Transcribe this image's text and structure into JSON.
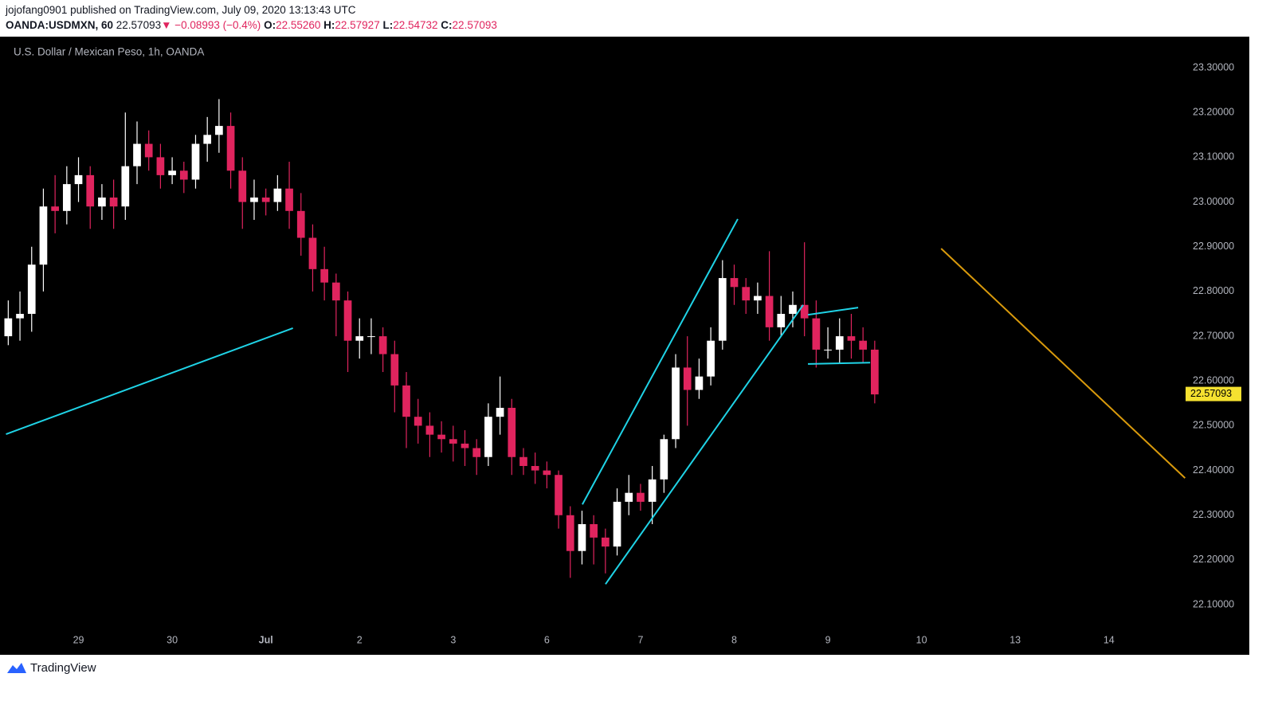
{
  "header": {
    "author_line": "jojofang0901 published on TradingView.com, July 09, 2020 13:13:43 UTC",
    "symbol": "OANDA:USDMXN, 60",
    "last": "22.57093",
    "change": "▼ −0.08993 (−0.4%)",
    "ohlc": [
      {
        "label": "O:",
        "value": "22.55260"
      },
      {
        "label": "H:",
        "value": "22.57927"
      },
      {
        "label": "L:",
        "value": "22.54732"
      },
      {
        "label": "C:",
        "value": "22.57093"
      }
    ]
  },
  "footer": {
    "brand": "TradingView"
  },
  "chart_data": {
    "type": "candlestick",
    "title": "U.S. Dollar / Mexican Peso, 1h, OANDA",
    "up_color": "#ffffff",
    "down_color": "#e0245e",
    "grid": false,
    "xlim": [
      -0.77,
      11.81
    ],
    "ylim": [
      22.045,
      23.366
    ],
    "xticks": [
      {
        "value": 0,
        "label": "29"
      },
      {
        "value": 1,
        "label": "30"
      },
      {
        "value": 2,
        "label": "Jul"
      },
      {
        "value": 3,
        "label": "2"
      },
      {
        "value": 4,
        "label": "3"
      },
      {
        "value": 5,
        "label": "6"
      },
      {
        "value": 6,
        "label": "7"
      },
      {
        "value": 7,
        "label": "8"
      },
      {
        "value": 8,
        "label": "9"
      },
      {
        "value": 9,
        "label": "10"
      },
      {
        "value": 10,
        "label": "13"
      },
      {
        "value": 11,
        "label": "14"
      }
    ],
    "yticks": [
      {
        "value": 22.1,
        "label": "22.10000"
      },
      {
        "value": 22.2,
        "label": "22.20000"
      },
      {
        "value": 22.3,
        "label": "22.30000"
      },
      {
        "value": 22.4,
        "label": "22.40000"
      },
      {
        "value": 22.5,
        "label": "22.50000"
      },
      {
        "value": 22.6,
        "label": "22.60000"
      },
      {
        "value": 22.7,
        "label": "22.70000"
      },
      {
        "value": 22.8,
        "label": "22.80000"
      },
      {
        "value": 22.9,
        "label": "22.90000"
      },
      {
        "value": 23.0,
        "label": "23.00000"
      },
      {
        "value": 23.1,
        "label": "23.10000"
      },
      {
        "value": 23.2,
        "label": "23.20000"
      },
      {
        "value": 23.3,
        "label": "23.30000"
      }
    ],
    "last_price": 22.57093,
    "last_price_color": "#f5e130",
    "x": [
      -0.75,
      -0.625,
      -0.5,
      -0.375,
      -0.25,
      -0.125,
      0,
      0.125,
      0.25,
      0.375,
      0.5,
      0.625,
      0.75,
      0.875,
      1,
      1.125,
      1.25,
      1.375,
      1.5,
      1.625,
      1.75,
      1.875,
      2,
      2.125,
      2.25,
      2.375,
      2.5,
      2.625,
      2.75,
      2.875,
      3,
      3.125,
      3.25,
      3.375,
      3.5,
      3.625,
      3.75,
      3.875,
      4,
      4.125,
      4.25,
      4.375,
      4.5,
      4.625,
      4.75,
      4.875,
      5,
      5.125,
      5.25,
      5.375,
      5.5,
      5.625,
      5.75,
      5.875,
      6,
      6.125,
      6.25,
      6.375,
      6.5,
      6.625,
      6.75,
      6.875,
      7,
      7.125,
      7.25,
      7.375,
      7.5,
      7.625,
      7.75,
      7.875,
      8,
      8.125,
      8.25,
      8.375,
      8.5
    ],
    "open": [
      22.7,
      22.74,
      22.75,
      22.86,
      22.99,
      22.98,
      23.04,
      23.06,
      22.99,
      23.01,
      22.99,
      23.08,
      23.13,
      23.1,
      23.06,
      23.07,
      23.05,
      23.13,
      23.15,
      23.17,
      23.07,
      23.0,
      23.01,
      23.0,
      23.03,
      22.98,
      22.92,
      22.85,
      22.82,
      22.78,
      22.69,
      22.7,
      22.7,
      22.66,
      22.59,
      22.52,
      22.5,
      22.48,
      22.47,
      22.46,
      22.45,
      22.43,
      22.52,
      22.54,
      22.43,
      22.41,
      22.4,
      22.39,
      22.3,
      22.22,
      22.28,
      22.25,
      22.23,
      22.33,
      22.35,
      22.33,
      22.38,
      22.47,
      22.63,
      22.58,
      22.61,
      22.69,
      22.83,
      22.81,
      22.78,
      22.79,
      22.72,
      22.75,
      22.77,
      22.74,
      22.67,
      22.67,
      22.7,
      22.69,
      22.67
    ],
    "high": [
      22.78,
      22.8,
      22.9,
      23.03,
      23.06,
      23.08,
      23.1,
      23.08,
      23.04,
      23.05,
      23.2,
      23.18,
      23.16,
      23.13,
      23.1,
      23.09,
      23.15,
      23.19,
      23.23,
      23.2,
      23.1,
      23.05,
      23.03,
      23.06,
      23.09,
      23.02,
      22.95,
      22.9,
      22.84,
      22.8,
      22.74,
      22.74,
      22.72,
      22.69,
      22.62,
      22.56,
      22.53,
      22.51,
      22.5,
      22.49,
      22.47,
      22.55,
      22.61,
      22.56,
      22.45,
      22.44,
      22.42,
      22.4,
      22.32,
      22.31,
      22.3,
      22.27,
      22.36,
      22.39,
      22.37,
      22.41,
      22.48,
      22.66,
      22.7,
      22.65,
      22.72,
      22.87,
      22.86,
      22.83,
      22.82,
      22.89,
      22.79,
      22.8,
      22.91,
      22.78,
      22.72,
      22.74,
      22.75,
      22.72,
      22.69
    ],
    "low": [
      22.68,
      22.69,
      22.71,
      22.8,
      22.93,
      22.95,
      23.0,
      22.94,
      22.96,
      22.94,
      22.96,
      23.04,
      23.07,
      23.03,
      23.04,
      23.02,
      23.03,
      23.09,
      23.11,
      23.03,
      22.94,
      22.96,
      22.97,
      22.98,
      22.94,
      22.88,
      22.8,
      22.78,
      22.7,
      22.62,
      22.65,
      22.66,
      22.62,
      22.53,
      22.45,
      22.46,
      22.43,
      22.44,
      22.42,
      22.41,
      22.39,
      22.41,
      22.48,
      22.39,
      22.39,
      22.37,
      22.36,
      22.27,
      22.16,
      22.19,
      22.19,
      22.17,
      22.21,
      22.3,
      22.31,
      22.28,
      22.35,
      22.45,
      22.5,
      22.56,
      22.59,
      22.67,
      22.77,
      22.75,
      22.75,
      22.69,
      22.7,
      22.72,
      22.7,
      22.63,
      22.65,
      22.64,
      22.65,
      22.64,
      22.55
    ],
    "close": [
      22.74,
      22.75,
      22.86,
      22.99,
      22.98,
      23.04,
      23.06,
      22.99,
      23.01,
      22.99,
      23.08,
      23.13,
      23.1,
      23.06,
      23.07,
      23.05,
      23.13,
      23.15,
      23.17,
      23.07,
      23.0,
      23.01,
      23.0,
      23.03,
      22.98,
      22.92,
      22.85,
      22.82,
      22.78,
      22.69,
      22.7,
      22.7,
      22.66,
      22.59,
      22.52,
      22.5,
      22.48,
      22.47,
      22.46,
      22.45,
      22.43,
      22.52,
      22.54,
      22.43,
      22.41,
      22.4,
      22.39,
      22.3,
      22.22,
      22.28,
      22.25,
      22.23,
      22.33,
      22.35,
      22.33,
      22.38,
      22.47,
      22.63,
      22.58,
      22.61,
      22.69,
      22.83,
      22.81,
      22.78,
      22.79,
      22.72,
      22.75,
      22.77,
      22.74,
      22.67,
      22.67,
      22.7,
      22.69,
      22.67,
      22.57
    ],
    "drawings": [
      {
        "color": "#1fd3e6",
        "points": [
          [
            -0.774,
            22.481
          ],
          [
            2.289,
            22.718
          ]
        ]
      },
      {
        "color": "#1fd3e6",
        "points": [
          [
            5.379,
            22.324
          ],
          [
            7.038,
            22.962
          ]
        ]
      },
      {
        "color": "#1fd3e6",
        "points": [
          [
            5.626,
            22.146
          ],
          [
            7.736,
            22.77
          ]
        ]
      },
      {
        "color": "#1fd3e6",
        "points": [
          [
            7.787,
            22.748
          ],
          [
            8.323,
            22.764
          ]
        ]
      },
      {
        "color": "#1fd3e6",
        "points": [
          [
            7.787,
            22.638
          ],
          [
            8.451,
            22.641
          ]
        ]
      },
      {
        "color": "#d99a0c",
        "points": [
          [
            9.209,
            22.896
          ],
          [
            11.813,
            22.383
          ]
        ]
      }
    ]
  }
}
